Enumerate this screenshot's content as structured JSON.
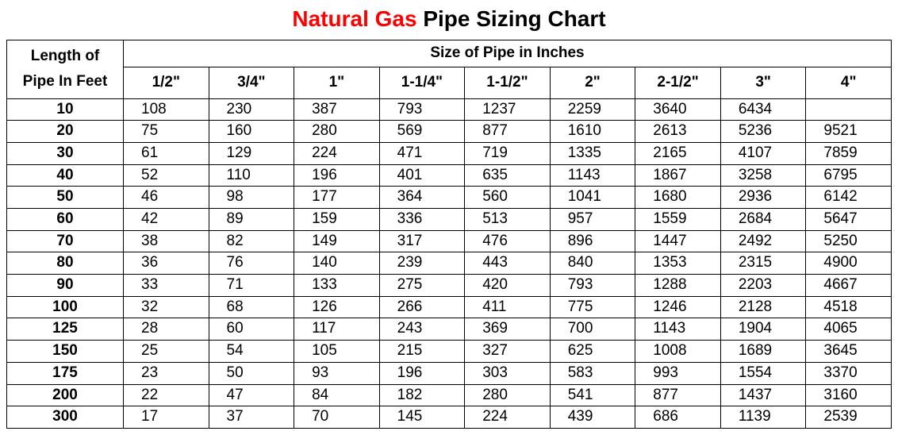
{
  "title": {
    "accent": "Natural Gas",
    "rest": " Pipe Sizing Chart",
    "accent_color": "#ff0000",
    "text_color": "#000000",
    "fontsize": 28
  },
  "table": {
    "row_header_line1": "Length  of",
    "row_header_line2": "Pipe  In  Feet",
    "group_header": "Size of Pipe in Inches",
    "columns": [
      "1/2\"",
      "3/4\"",
      "1\"",
      "1-1/4\"",
      "1-1/2\"",
      "2\"",
      "2-1/2\"",
      "3\"",
      "4\""
    ],
    "lengths": [
      "10",
      "20",
      "30",
      "40",
      "50",
      "60",
      "70",
      "80",
      "90",
      "100",
      "125",
      "150",
      "175",
      "200",
      "300"
    ],
    "rows": [
      [
        "108",
        "230",
        "387",
        "793",
        "1237",
        "2259",
        "3640",
        "6434",
        ""
      ],
      [
        "75",
        "160",
        "280",
        "569",
        "877",
        "1610",
        "2613",
        "5236",
        "9521"
      ],
      [
        "61",
        "129",
        "224",
        "471",
        "719",
        "1335",
        "2165",
        "4107",
        "7859"
      ],
      [
        "52",
        "110",
        "196",
        "401",
        "635",
        "1143",
        "1867",
        "3258",
        "6795"
      ],
      [
        "46",
        "98",
        "177",
        "364",
        "560",
        "1041",
        "1680",
        "2936",
        "6142"
      ],
      [
        "42",
        "89",
        "159",
        "336",
        "513",
        "957",
        "1559",
        "2684",
        "5647"
      ],
      [
        "38",
        "82",
        "149",
        "317",
        "476",
        "896",
        "1447",
        "2492",
        "5250"
      ],
      [
        "36",
        "76",
        "140",
        "239",
        "443",
        "840",
        "1353",
        "2315",
        "4900"
      ],
      [
        "33",
        "71",
        "133",
        "275",
        "420",
        "793",
        "1288",
        "2203",
        "4667"
      ],
      [
        "32",
        "68",
        "126",
        "266",
        "411",
        "775",
        "1246",
        "2128",
        "4518"
      ],
      [
        "28",
        "60",
        "117",
        "243",
        "369",
        "700",
        "1143",
        "1904",
        "4065"
      ],
      [
        "25",
        "54",
        "105",
        "215",
        "327",
        "625",
        "1008",
        "1689",
        "3645"
      ],
      [
        "23",
        "50",
        "93",
        "196",
        "303",
        "583",
        "993",
        "1554",
        "3370"
      ],
      [
        "22",
        "47",
        "84",
        "182",
        "280",
        "541",
        "877",
        "1437",
        "3160"
      ],
      [
        "17",
        "37",
        "70",
        "145",
        "224",
        "439",
        "686",
        "1139",
        "2539"
      ]
    ],
    "border_color": "#000000",
    "background_color": "#ffffff",
    "header_fontsize": 19,
    "body_fontsize": 19
  }
}
